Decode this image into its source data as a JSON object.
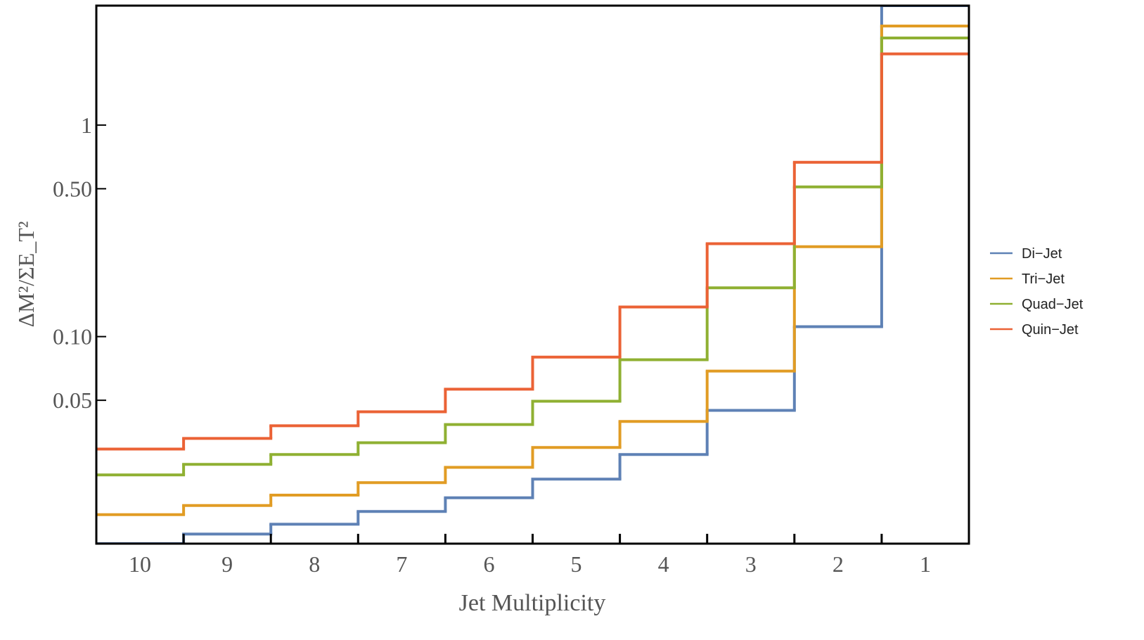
{
  "chart_data": {
    "type": "step",
    "x_label": "Jet Multiplicity",
    "y_label": "ΔM²/ΣE_T²",
    "categories": [
      "10",
      "9",
      "8",
      "7",
      "6",
      "5",
      "4",
      "3",
      "2",
      "1"
    ],
    "ylim": [
      0.0105,
      3.67
    ],
    "log_y": true,
    "yticks": [
      {
        "value": 0.05,
        "label": "0.05"
      },
      {
        "value": 0.1,
        "label": "0.10"
      },
      {
        "value": 0.5,
        "label": "0.50"
      },
      1
    ],
    "legend": "right",
    "series": [
      {
        "name": "Di−Jet",
        "color": "#5e81b5",
        "values": [
          0.0105,
          0.01165,
          0.01297,
          0.0149,
          0.0173,
          0.0212,
          0.0277,
          0.0448,
          0.1114,
          3.67
        ]
      },
      {
        "name": "Tri−Jet",
        "color": "#e19c24",
        "values": [
          0.0144,
          0.0159,
          0.0178,
          0.0204,
          0.0241,
          0.0299,
          0.0397,
          0.0687,
          0.266,
          2.94
        ]
      },
      {
        "name": "Quad−Jet",
        "color": "#8fb032",
        "values": [
          0.0222,
          0.0249,
          0.0277,
          0.0315,
          0.0384,
          0.0495,
          0.0777,
          0.17,
          0.51,
          2.58
        ]
      },
      {
        "name": "Quin−Jet",
        "color": "#eb6235",
        "values": [
          0.0294,
          0.033,
          0.0379,
          0.0441,
          0.0564,
          0.08,
          0.138,
          0.275,
          0.667,
          2.17
        ]
      }
    ]
  }
}
